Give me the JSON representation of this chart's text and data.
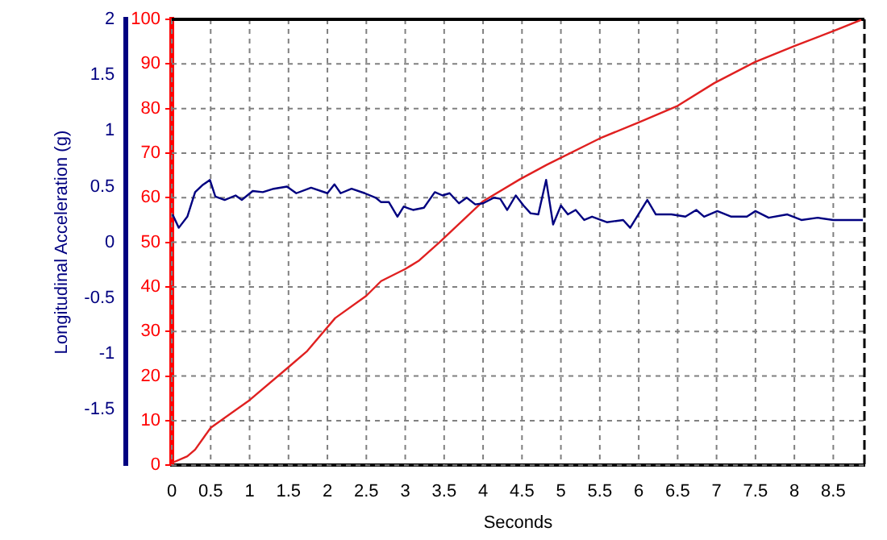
{
  "chart_data": {
    "type": "line",
    "xlabel": "Seconds",
    "ylabel": "Longitudinal Acceleration (g)",
    "xlim": [
      0,
      8.9
    ],
    "xticks": [
      0,
      0.5,
      1,
      1.5,
      2,
      2.5,
      3,
      3.5,
      4,
      4.5,
      5,
      5.5,
      6,
      6.5,
      7,
      7.5,
      8,
      8.5
    ],
    "ylim": [
      -2,
      2
    ],
    "yticks": [
      -1.5,
      -1,
      -0.5,
      0,
      0.5,
      1,
      1.5,
      2
    ],
    "y2lim": [
      0,
      100
    ],
    "y2ticks": [
      0,
      10,
      20,
      30,
      40,
      50,
      60,
      70,
      80,
      90,
      100
    ],
    "grid": true,
    "line_style": "solid",
    "marker": "none",
    "series": [
      {
        "axis": "y",
        "color": "#000080",
        "x": [
          0.01,
          0.09,
          0.2,
          0.3,
          0.39,
          0.49,
          0.56,
          0.68,
          0.82,
          0.9,
          1.04,
          1.17,
          1.31,
          1.48,
          1.6,
          1.79,
          2.0,
          2.09,
          2.17,
          2.31,
          2.48,
          2.62,
          2.69,
          2.79,
          2.9,
          2.98,
          3.1,
          3.24,
          3.38,
          3.48,
          3.57,
          3.69,
          3.79,
          3.9,
          4.0,
          4.14,
          4.22,
          4.31,
          4.42,
          4.52,
          4.61,
          4.71,
          4.81,
          4.9,
          5.0,
          5.09,
          5.19,
          5.3,
          5.4,
          5.59,
          5.8,
          5.89,
          6.11,
          6.22,
          6.42,
          6.6,
          6.74,
          6.84,
          7.01,
          7.19,
          7.39,
          7.5,
          7.67,
          7.91,
          8.09,
          8.3,
          8.5,
          8.71,
          8.88
        ],
        "values": [
          0.25,
          0.13,
          0.23,
          0.45,
          0.51,
          0.56,
          0.41,
          0.38,
          0.42,
          0.38,
          0.46,
          0.45,
          0.48,
          0.5,
          0.44,
          0.49,
          0.44,
          0.52,
          0.44,
          0.48,
          0.44,
          0.4,
          0.36,
          0.36,
          0.23,
          0.32,
          0.29,
          0.31,
          0.45,
          0.42,
          0.44,
          0.35,
          0.4,
          0.34,
          0.35,
          0.4,
          0.39,
          0.29,
          0.42,
          0.33,
          0.26,
          0.25,
          0.56,
          0.16,
          0.33,
          0.25,
          0.29,
          0.2,
          0.23,
          0.18,
          0.2,
          0.13,
          0.38,
          0.25,
          0.25,
          0.23,
          0.29,
          0.23,
          0.28,
          0.23,
          0.23,
          0.28,
          0.22,
          0.25,
          0.2,
          0.22,
          0.2,
          0.2,
          0.2
        ]
      },
      {
        "axis": "y2",
        "color": "#e02020",
        "x": [
          0,
          0.2,
          0.3,
          0.5,
          1.0,
          1.5,
          1.74,
          2.1,
          2.5,
          2.69,
          3.0,
          3.17,
          3.44,
          4.0,
          4.47,
          4.82,
          5.5,
          6.0,
          6.5,
          6.97,
          7.49,
          8.0,
          8.55,
          8.86
        ],
        "values": [
          0.5,
          2,
          3.5,
          8.4,
          14.6,
          22,
          25.6,
          33,
          38,
          41.3,
          44,
          45.8,
          50,
          59.2,
          64.1,
          67.4,
          73.3,
          76.9,
          80.6,
          85.7,
          90.4,
          94,
          97.7,
          99.9
        ]
      }
    ]
  }
}
